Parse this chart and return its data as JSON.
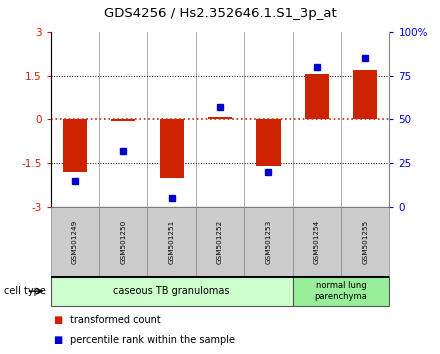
{
  "title": "GDS4256 / Hs2.352646.1.S1_3p_at",
  "samples": [
    "GSM501249",
    "GSM501250",
    "GSM501251",
    "GSM501252",
    "GSM501253",
    "GSM501254",
    "GSM501255"
  ],
  "transformed_count": [
    -1.8,
    -0.05,
    -2.0,
    0.1,
    -1.6,
    1.55,
    1.7
  ],
  "percentile_rank": [
    15,
    32,
    5,
    57,
    20,
    80,
    85
  ],
  "ylim_left": [
    -3,
    3
  ],
  "ylim_right": [
    0,
    100
  ],
  "yticks_left": [
    -3,
    -1.5,
    0,
    1.5,
    3
  ],
  "ytick_labels_left": [
    "-3",
    "-1.5",
    "0",
    "1.5",
    "3"
  ],
  "yticks_right": [
    0,
    25,
    50,
    75,
    100
  ],
  "ytick_labels_right": [
    "0",
    "25",
    "50",
    "75",
    "100%"
  ],
  "bar_color": "#cc2200",
  "dot_color": "#0000cc",
  "hline_color": "#cc2200",
  "group1_samples": 5,
  "group2_samples": 2,
  "group1_label": "caseous TB granulomas",
  "group2_label": "normal lung\nparenchyma",
  "group1_color": "#ccffcc",
  "group2_color": "#99ee99",
  "legend_bar_label": "transformed count",
  "legend_dot_label": "percentile rank within the sample",
  "cell_type_label": "cell type",
  "bar_width": 0.5
}
